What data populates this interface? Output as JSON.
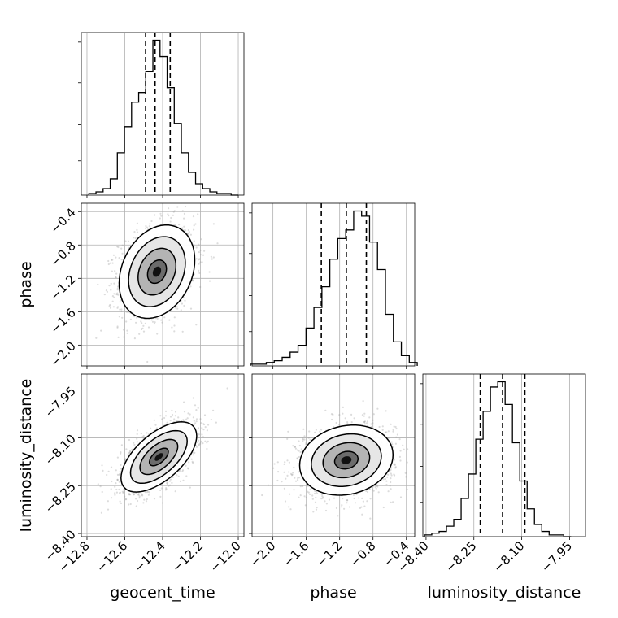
{
  "chart_data": {
    "type": "corner",
    "parameters": [
      "geocent_time",
      "phase",
      "luminosity_distance"
    ],
    "ranges": {
      "geocent_time": [
        -12.83,
        -11.97
      ],
      "phase": [
        -2.25,
        -0.3
      ],
      "luminosity_distance": [
        -8.41,
        -7.9
      ]
    },
    "ticks": {
      "geocent_time": [
        -12.8,
        -12.6,
        -12.4,
        -12.2,
        -12.0
      ],
      "phase": [
        -2.0,
        -1.6,
        -1.2,
        -0.8,
        -0.4
      ],
      "luminosity_distance": [
        -8.4,
        -8.25,
        -8.1,
        -7.95
      ]
    },
    "tick_labels": {
      "geocent_time": [
        "−12.8",
        "−12.6",
        "−12.4",
        "−12.2",
        "−12.0"
      ],
      "phase": [
        "−2.0",
        "−1.6",
        "−1.2",
        "−0.8",
        "−0.4"
      ],
      "luminosity_distance": [
        "−8.40",
        "−8.25",
        "−8.10",
        "−7.95"
      ]
    },
    "quantiles": {
      "geocent_time": [
        -12.49,
        -12.44,
        -12.36
      ],
      "phase": [
        -1.42,
        -1.12,
        -0.88
      ],
      "luminosity_distance": [
        -8.23,
        -8.16,
        -8.09
      ]
    },
    "histograms": {
      "geocent_time": {
        "edges_range": [
          -12.79,
          -12.0
        ],
        "counts": [
          1,
          2,
          4,
          10,
          26,
          42,
          57,
          63,
          76,
          95,
          85,
          66,
          44,
          26,
          14,
          7,
          4,
          2,
          1,
          1,
          0
        ]
      },
      "phase": {
        "edges_range": [
          -2.27,
          -0.27
        ],
        "counts": [
          1,
          1,
          2,
          3,
          5,
          8,
          12,
          22,
          34,
          46,
          62,
          74,
          79,
          90,
          87,
          72,
          56,
          30,
          14,
          6,
          2
        ]
      },
      "luminosity_distance": {
        "edges_range": [
          -8.405,
          -7.945
        ],
        "counts": [
          1,
          2,
          3,
          6,
          10,
          22,
          36,
          56,
          72,
          86,
          89,
          76,
          54,
          32,
          16,
          7,
          3,
          1,
          1,
          0
        ]
      }
    },
    "pairs": [
      {
        "x": "geocent_time",
        "y": "phase",
        "mean": [
          -12.43,
          -1.12
        ],
        "sd": [
          0.1,
          0.28
        ],
        "corr": 0.25
      },
      {
        "x": "geocent_time",
        "y": "luminosity_distance",
        "mean": [
          -12.42,
          -8.16
        ],
        "sd": [
          0.1,
          0.055
        ],
        "corr": 0.6
      },
      {
        "x": "phase",
        "y": "luminosity_distance",
        "mean": [
          -1.12,
          -8.17
        ],
        "sd": [
          0.28,
          0.055
        ],
        "corr": 0.15
      }
    ],
    "contour_levels_sigma": [
      0.5,
      1.0,
      1.5,
      2.0
    ],
    "grid": true
  }
}
